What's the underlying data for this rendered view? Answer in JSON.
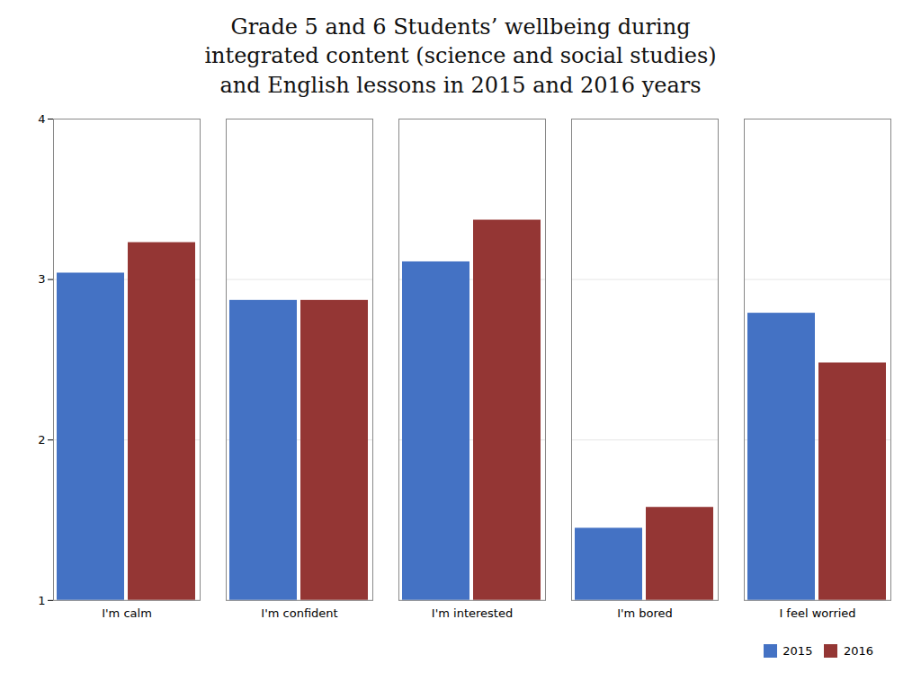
{
  "chart_data": {
    "type": "bar",
    "title": "Grade 5 and 6 Students’ wellbeing during\nintegrated content (science and social studies)\nand English lessons in 2015 and 2016 years",
    "categories": [
      "I'm calm",
      "I'm confident",
      "I'm interested",
      "I'm bored",
      "I feel worried"
    ],
    "series": [
      {
        "name": "2015",
        "color": "#4472C4",
        "values": [
          3.04,
          2.87,
          3.11,
          1.45,
          2.79
        ]
      },
      {
        "name": "2016",
        "color": "#943634",
        "values": [
          3.23,
          2.87,
          3.37,
          1.58,
          2.48
        ]
      }
    ],
    "ylim": [
      1,
      4
    ],
    "yticks": [
      1,
      2,
      3,
      4
    ],
    "grid": true,
    "legend": "lower right"
  }
}
